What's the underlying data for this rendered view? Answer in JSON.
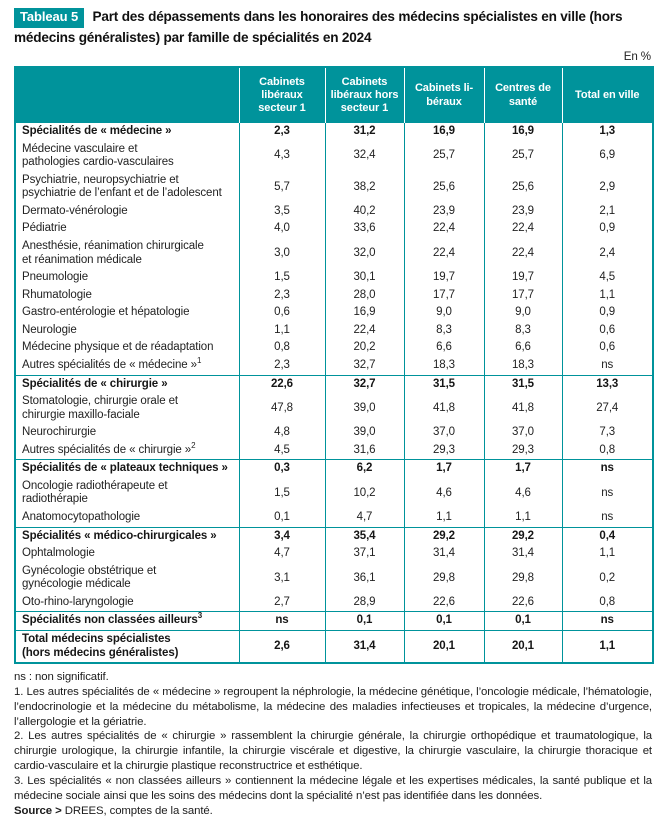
{
  "header": {
    "badge": "Tableau 5",
    "title": "Part des dépassements dans les honoraires des médecins spécialistes en ville (hors médecins généralistes) par famille de spécialités en 2024",
    "unit": "En %"
  },
  "colors": {
    "teal": "#00939b",
    "text": "#1d1d1d"
  },
  "table": {
    "columns": [
      "Cabinets libéraux secteur 1",
      "Cabinets libéraux hors secteur 1",
      "Cabinets li-béraux",
      "Centres de santé",
      "Total en ville"
    ],
    "rows": [
      {
        "label": "Spécialités de « médecine »",
        "bold": true,
        "sep": false,
        "values": [
          "2,3",
          "31,2",
          "16,9",
          "16,9",
          "1,3"
        ]
      },
      {
        "label": "Médecine vasculaire et\npathologies cardio-vasculaires",
        "values": [
          "4,3",
          "32,4",
          "25,7",
          "25,7",
          "6,9"
        ]
      },
      {
        "label": "Psychiatrie, neuropsychiatrie et\npsychiatrie de l’enfant et de l’adolescent",
        "values": [
          "5,7",
          "38,2",
          "25,6",
          "25,6",
          "2,9"
        ]
      },
      {
        "label": "Dermato-vénérologie",
        "values": [
          "3,5",
          "40,2",
          "23,9",
          "23,9",
          "2,1"
        ]
      },
      {
        "label": "Pédiatrie",
        "values": [
          "4,0",
          "33,6",
          "22,4",
          "22,4",
          "0,9"
        ]
      },
      {
        "label": "Anesthésie, réanimation chirurgicale\net réanimation médicale",
        "values": [
          "3,0",
          "32,0",
          "22,4",
          "22,4",
          "2,4"
        ]
      },
      {
        "label": "Pneumologie",
        "values": [
          "1,5",
          "30,1",
          "19,7",
          "19,7",
          "4,5"
        ]
      },
      {
        "label": "Rhumatologie",
        "values": [
          "2,3",
          "28,0",
          "17,7",
          "17,7",
          "1,1"
        ]
      },
      {
        "label": "Gastro-entérologie et hépatologie",
        "values": [
          "0,6",
          "16,9",
          "9,0",
          "9,0",
          "0,9"
        ]
      },
      {
        "label": "Neurologie",
        "values": [
          "1,1",
          "22,4",
          "8,3",
          "8,3",
          "0,6"
        ]
      },
      {
        "label": "Médecine physique et de réadaptation",
        "values": [
          "0,8",
          "20,2",
          "6,6",
          "6,6",
          "0,6"
        ]
      },
      {
        "label": "Autres spécialités de « médecine »",
        "sup": "1",
        "values": [
          "2,3",
          "32,7",
          "18,3",
          "18,3",
          "ns"
        ]
      },
      {
        "label": "Spécialités de « chirurgie »",
        "bold": true,
        "sep": true,
        "values": [
          "22,6",
          "32,7",
          "31,5",
          "31,5",
          "13,3"
        ]
      },
      {
        "label": "Stomatologie, chirurgie orale et\nchirurgie maxillo-faciale",
        "values": [
          "47,8",
          "39,0",
          "41,8",
          "41,8",
          "27,4"
        ]
      },
      {
        "label": "Neurochirurgie",
        "values": [
          "4,8",
          "39,0",
          "37,0",
          "37,0",
          "7,3"
        ]
      },
      {
        "label": "Autres spécialités de « chirurgie »",
        "sup": "2",
        "values": [
          "4,5",
          "31,6",
          "29,3",
          "29,3",
          "0,8"
        ]
      },
      {
        "label": "Spécialités de « plateaux techniques »",
        "bold": true,
        "sep": true,
        "values": [
          "0,3",
          "6,2",
          "1,7",
          "1,7",
          "ns"
        ]
      },
      {
        "label": "Oncologie radiothérapeute et radiothérapie",
        "values": [
          "1,5",
          "10,2",
          "4,6",
          "4,6",
          "ns"
        ]
      },
      {
        "label": "Anatomocytopathologie",
        "values": [
          "0,1",
          "4,7",
          "1,1",
          "1,1",
          "ns"
        ]
      },
      {
        "label": "Spécialités « médico-chirurgicales »",
        "bold": true,
        "sep": true,
        "values": [
          "3,4",
          "35,4",
          "29,2",
          "29,2",
          "0,4"
        ]
      },
      {
        "label": "Ophtalmologie",
        "values": [
          "4,7",
          "37,1",
          "31,4",
          "31,4",
          "1,1"
        ]
      },
      {
        "label": "Gynécologie obstétrique et\ngynécologie médicale",
        "values": [
          "3,1",
          "36,1",
          "29,8",
          "29,8",
          "0,2"
        ]
      },
      {
        "label": "Oto-rhino-laryngologie",
        "values": [
          "2,7",
          "28,9",
          "22,6",
          "22,6",
          "0,8"
        ]
      },
      {
        "label": "Spécialités non classées ailleurs",
        "sup": "3",
        "bold": true,
        "sep": true,
        "values": [
          "ns",
          "0,1",
          "0,1",
          "0,1",
          "ns"
        ]
      },
      {
        "label": "Total médecins spécialistes\n(hors médecins généralistes)",
        "bold": true,
        "sep": true,
        "values": [
          "2,6",
          "31,4",
          "20,1",
          "20,1",
          "1,1"
        ]
      }
    ]
  },
  "notes": {
    "items": [
      "ns : non significatif.",
      "1. Les autres spécialités de « médecine » regroupent la néphrologie, la médecine génétique, l’oncologie médicale, l’hématologie, l’endocrinologie et la médecine du métabolisme, la médecine des maladies infectieuses et tropicales, la médecine d’urgence, l’allergologie et la gériatrie.",
      "2. Les autres spécialités de « chirurgie » rassemblent la chirurgie générale, la chirurgie orthopédique et traumatologique, la chirurgie urologique, la chirurgie infantile, la chirurgie viscérale et digestive, la chirurgie vasculaire, la chirurgie thoracique et cardio-vasculaire et la chirurgie plastique reconstructrice et esthétique.",
      "3. Les spécialités « non classées ailleurs » contiennent la médecine légale et les expertises médicales, la santé publique et la médecine sociale ainsi que les soins des médecins dont la spécialité n’est pas identifiée dans les données."
    ],
    "source_label": "Source >",
    "source_text": "DREES, comptes de la santé."
  }
}
